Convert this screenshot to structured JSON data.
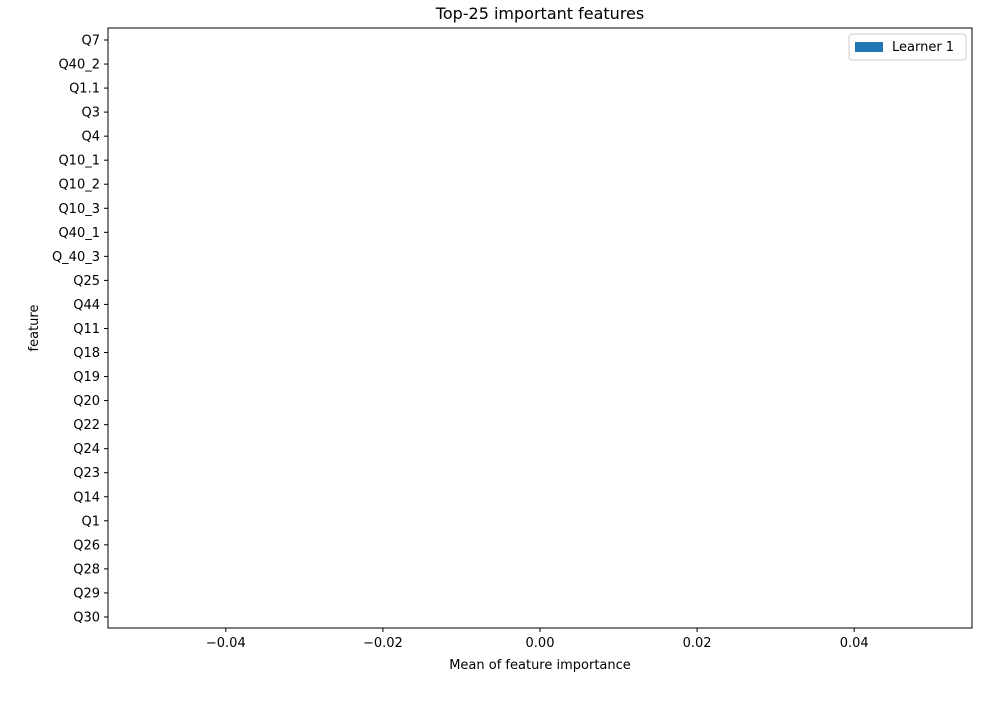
{
  "chart_data": {
    "type": "bar",
    "orientation": "horizontal",
    "title": "Top-25 important features",
    "xlabel": "Mean of feature importance",
    "ylabel": "feature",
    "categories": [
      "Q7",
      "Q40_2",
      "Q1.1",
      "Q3",
      "Q4",
      "Q10_1",
      "Q10_2",
      "Q10_3",
      "Q40_1",
      "Q_40_3",
      "Q25",
      "Q44",
      "Q11",
      "Q18",
      "Q19",
      "Q20",
      "Q22",
      "Q24",
      "Q23",
      "Q14",
      "Q1",
      "Q26",
      "Q28",
      "Q29",
      "Q30"
    ],
    "series": [
      {
        "name": "Learner 1",
        "color": "#1f77b4",
        "values": [
          0,
          0,
          0,
          0,
          0,
          0,
          0,
          0,
          0,
          0,
          0,
          0,
          0,
          0,
          0,
          0,
          0,
          0,
          0,
          0,
          0,
          0,
          0,
          0,
          0
        ]
      }
    ],
    "xlim": [
      -0.055,
      0.055
    ],
    "xticks": [
      -0.04,
      -0.02,
      0.0,
      0.02,
      0.04
    ],
    "xtick_labels": [
      "−0.04",
      "−0.02",
      "0.00",
      "0.02",
      "0.04"
    ],
    "grid": false,
    "legend_position": "top-right"
  }
}
